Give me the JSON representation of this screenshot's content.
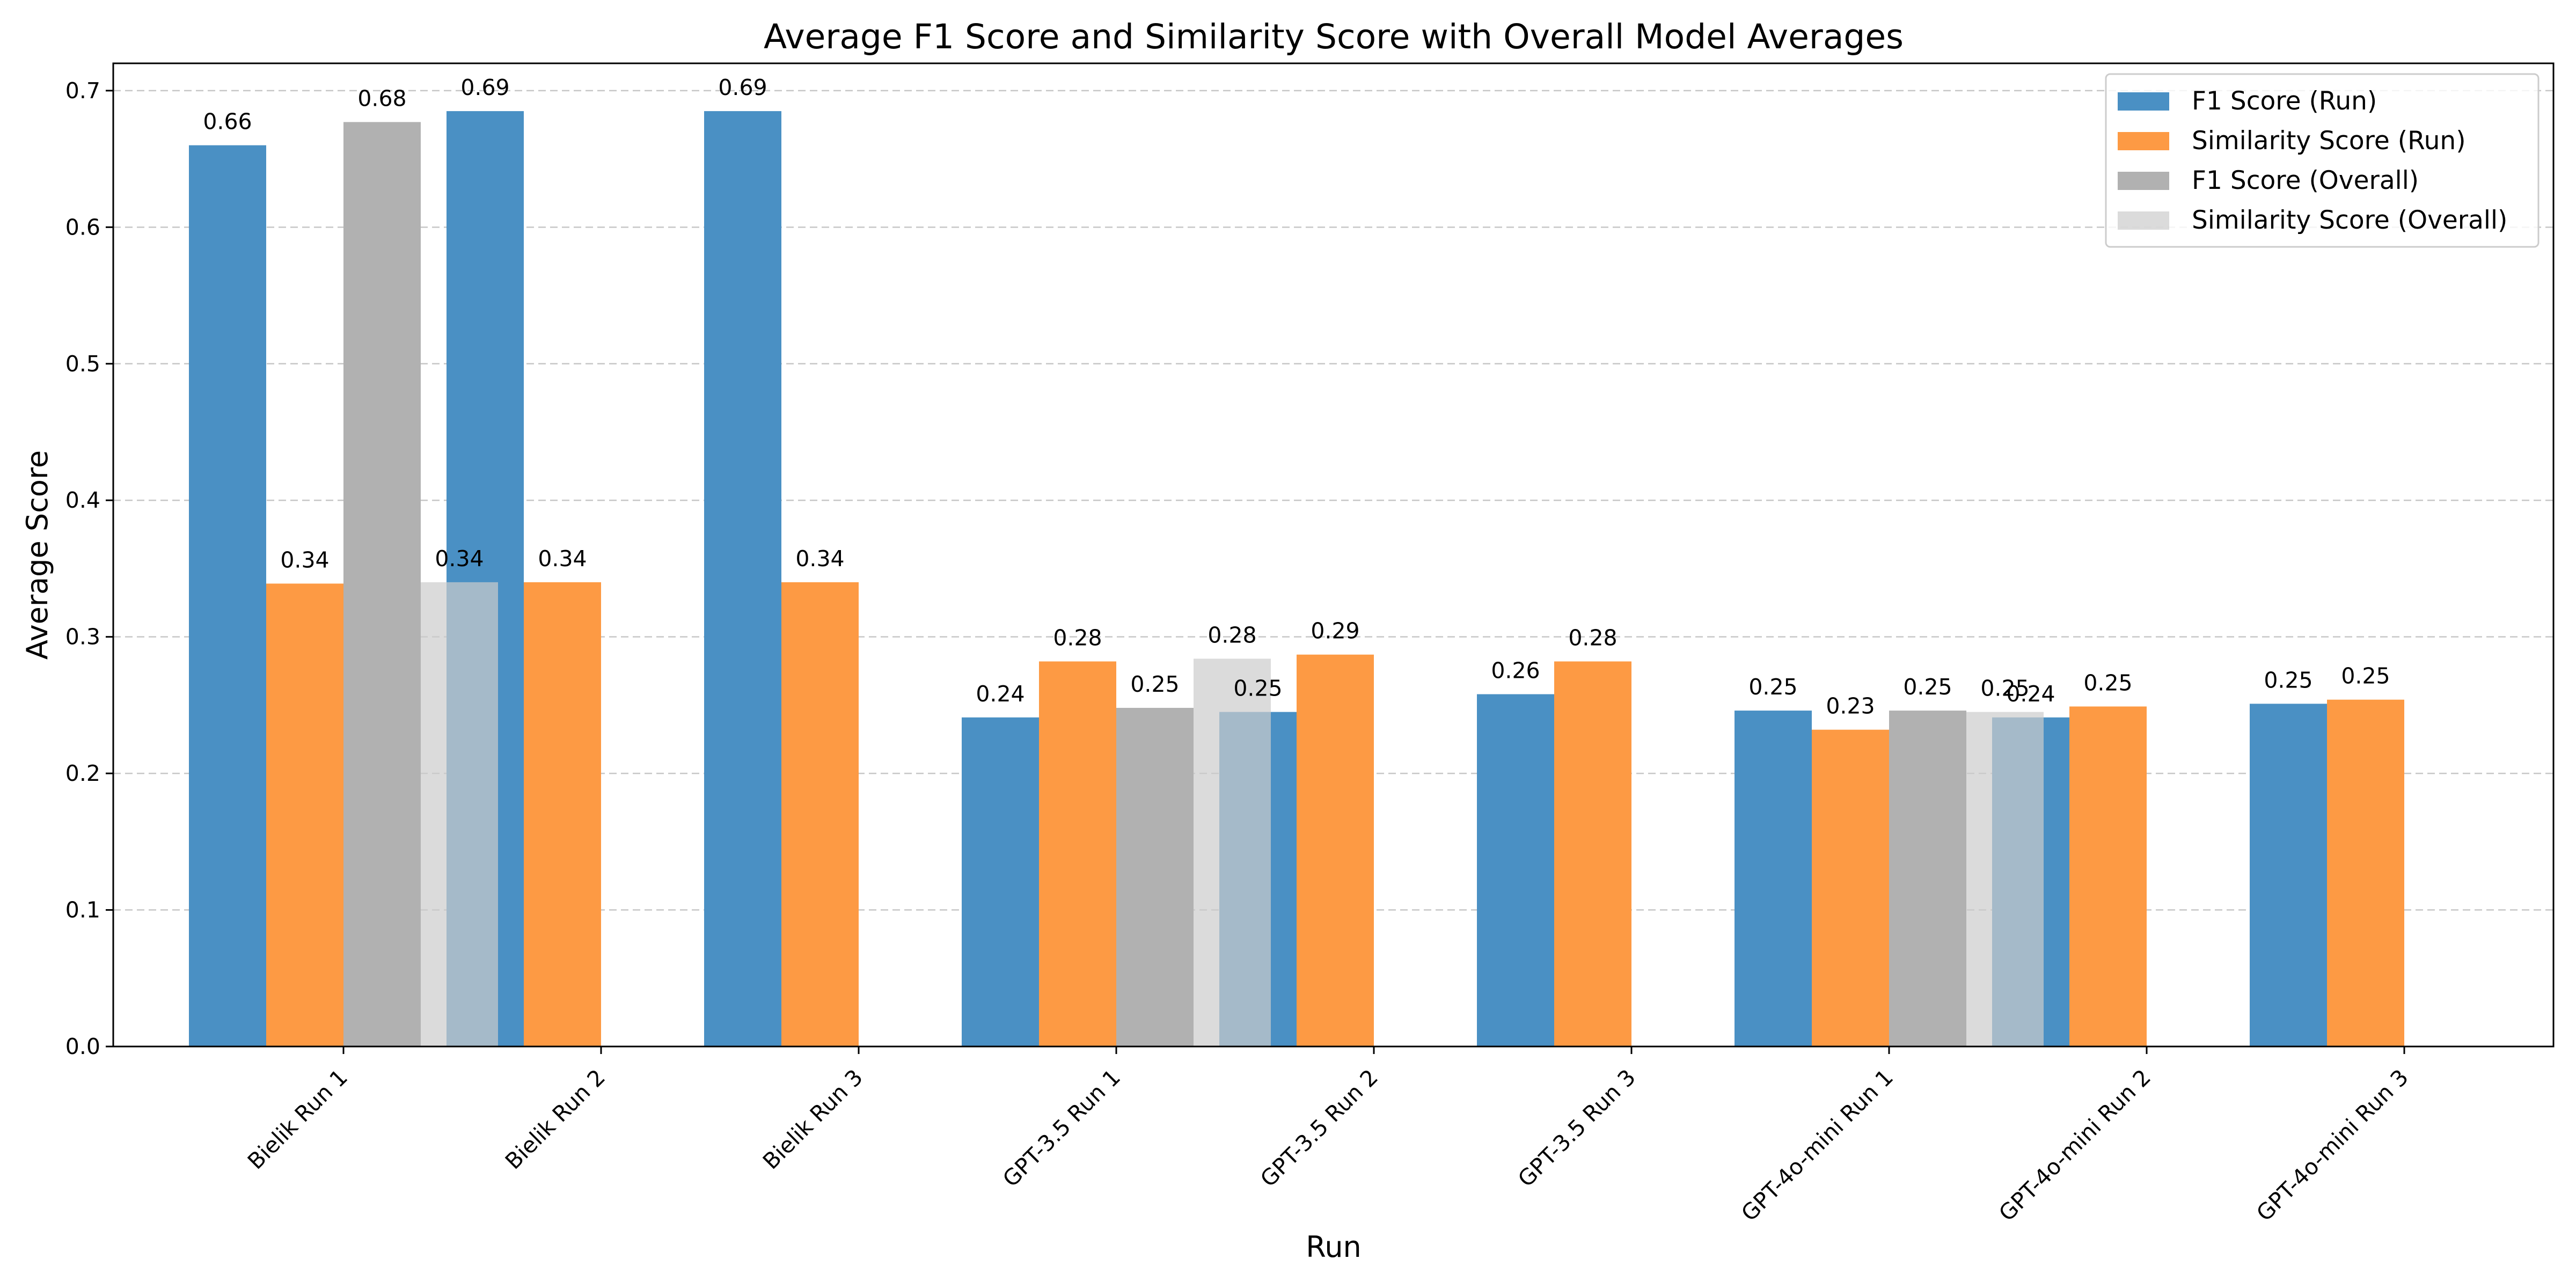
{
  "chart_data": {
    "type": "bar",
    "title": "Average F1 Score and Similarity Score with Overall Model Averages",
    "xlabel": "Run",
    "ylabel": "Average Score",
    "ylim": [
      0,
      0.72
    ],
    "yticks": [
      0.0,
      0.1,
      0.2,
      0.3,
      0.4,
      0.5,
      0.6,
      0.7
    ],
    "ytick_labels": [
      "0.0",
      "0.1",
      "0.2",
      "0.3",
      "0.4",
      "0.5",
      "0.6",
      "0.7"
    ],
    "grid": "horizontal dashed",
    "legend_position": "top-right",
    "categories": [
      "Bielik Run 1",
      "Bielik Run 2",
      "Bielik Run 3",
      "GPT-3.5 Run 1",
      "GPT-3.5 Run 2",
      "GPT-3.5 Run 3",
      "GPT-4o-mini Run 1",
      "GPT-4o-mini Run 2",
      "GPT-4o-mini Run 3"
    ],
    "series": [
      {
        "name": "F1 Score (Run)",
        "color": "#4a90c4",
        "values": [
          0.66,
          0.685,
          0.685,
          0.241,
          0.245,
          0.258,
          0.246,
          0.241,
          0.251
        ],
        "labels": [
          "0.66",
          "0.69",
          "0.69",
          "0.24",
          "0.25",
          "0.26",
          "0.25",
          "0.24",
          "0.25"
        ]
      },
      {
        "name": "Similarity Score (Run)",
        "color": "#fd9a44",
        "values": [
          0.339,
          0.34,
          0.34,
          0.282,
          0.287,
          0.282,
          0.232,
          0.249,
          0.254
        ],
        "labels": [
          "0.34",
          "0.34",
          "0.34",
          "0.28",
          "0.29",
          "0.28",
          "0.23",
          "0.25",
          "0.25"
        ]
      }
    ],
    "overall": {
      "models": [
        "Bielik",
        "GPT-3.5",
        "GPT-4o-mini"
      ],
      "series": [
        {
          "name": "F1 Score (Overall)",
          "color": "#b1b1b1",
          "opacity": 1.0,
          "values": [
            0.677,
            0.248,
            0.246
          ],
          "labels": [
            "0.68",
            "0.25",
            "0.25"
          ]
        },
        {
          "name": "Similarity Score (Overall)",
          "color": "#cccccc",
          "opacity": 0.7,
          "values": [
            0.34,
            0.284,
            0.245
          ],
          "labels": [
            "0.34",
            "0.28",
            "0.25"
          ]
        }
      ]
    }
  }
}
